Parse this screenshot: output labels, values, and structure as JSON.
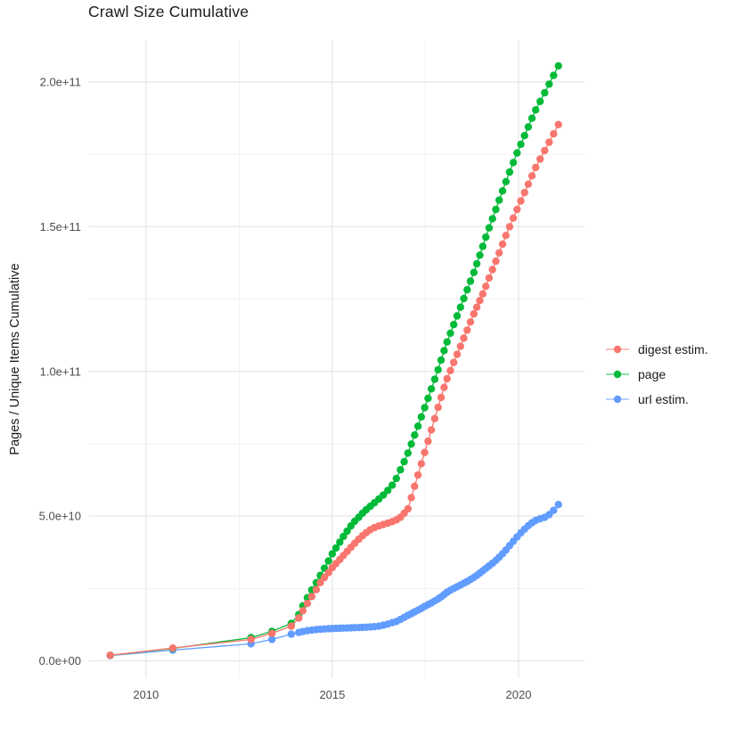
{
  "chart_data": {
    "type": "scatter",
    "title": "Crawl Size Cumulative",
    "ylabel": "Pages / Unique Items Cumulative",
    "xlabel": "",
    "grid": "on",
    "legend_position": "right",
    "value_unit": "1e9 (values below are billions of pages / items)",
    "xlim": [
      2008.45,
      2021.77
    ],
    "ylim_e9": [
      -6,
      214.5
    ],
    "x_ticks": [
      {
        "year": 2010,
        "label": "2010"
      },
      {
        "year": 2015,
        "label": "2015"
      },
      {
        "year": 2020,
        "label": "2020"
      }
    ],
    "y_ticks": [
      {
        "value_e9": 0,
        "label": "0.0e+00"
      },
      {
        "value_e9": 50,
        "label": "5.0e+10"
      },
      {
        "value_e9": 100,
        "label": "1.0e+11"
      },
      {
        "value_e9": 150,
        "label": "1.5e+11"
      },
      {
        "value_e9": 200,
        "label": "2.0e+11"
      }
    ],
    "x_minor_ticks": [
      2012.5,
      2017.5
    ],
    "y_minor_ticks_e9": [
      25,
      75,
      125,
      175
    ],
    "colors": {
      "digest": "#F8766D",
      "page": "#00BA38",
      "url": "#619CFF",
      "grid_major": "#E7E7E7",
      "grid_minor": "#F1F1F1",
      "tick_text": "#4d4d4d",
      "text": "#1a1a1a"
    },
    "legend_order": [
      "digest estim.",
      "page",
      "url estim."
    ],
    "series": [
      {
        "name": "url estim.",
        "color": "#619CFF",
        "points": [
          [
            2009.04,
            1.8
          ],
          [
            2010.72,
            3.7
          ],
          [
            2012.82,
            5.9
          ],
          [
            2013.38,
            7.4
          ],
          [
            2013.9,
            9.2
          ],
          [
            2014.1,
            9.8
          ],
          [
            2014.21,
            10.1
          ],
          [
            2014.33,
            10.4
          ],
          [
            2014.45,
            10.6
          ],
          [
            2014.57,
            10.8
          ],
          [
            2014.68,
            10.9
          ],
          [
            2014.79,
            11.0
          ],
          [
            2014.9,
            11.1
          ],
          [
            2015.0,
            11.15
          ],
          [
            2015.1,
            11.2
          ],
          [
            2015.2,
            11.25
          ],
          [
            2015.3,
            11.3
          ],
          [
            2015.4,
            11.35
          ],
          [
            2015.5,
            11.4
          ],
          [
            2015.6,
            11.45
          ],
          [
            2015.71,
            11.5
          ],
          [
            2015.81,
            11.55
          ],
          [
            2015.91,
            11.6
          ],
          [
            2016.02,
            11.7
          ],
          [
            2016.13,
            11.8
          ],
          [
            2016.25,
            12.0
          ],
          [
            2016.37,
            12.3
          ],
          [
            2016.49,
            12.7
          ],
          [
            2016.61,
            13.2
          ],
          [
            2016.72,
            13.6
          ],
          [
            2016.83,
            14.3
          ],
          [
            2016.93,
            15.0
          ],
          [
            2017.03,
            15.7
          ],
          [
            2017.12,
            16.3
          ],
          [
            2017.21,
            16.9
          ],
          [
            2017.3,
            17.5
          ],
          [
            2017.39,
            18.1
          ],
          [
            2017.48,
            18.8
          ],
          [
            2017.57,
            19.4
          ],
          [
            2017.66,
            20.0
          ],
          [
            2017.75,
            20.7
          ],
          [
            2017.84,
            21.4
          ],
          [
            2017.92,
            22.1
          ],
          [
            2018.0,
            22.9
          ],
          [
            2018.08,
            23.7
          ],
          [
            2018.17,
            24.4
          ],
          [
            2018.26,
            25.0
          ],
          [
            2018.35,
            25.6
          ],
          [
            2018.44,
            26.2
          ],
          [
            2018.53,
            26.8
          ],
          [
            2018.62,
            27.4
          ],
          [
            2018.71,
            28.1
          ],
          [
            2018.8,
            28.8
          ],
          [
            2018.88,
            29.5
          ],
          [
            2018.96,
            30.3
          ],
          [
            2019.04,
            31.1
          ],
          [
            2019.12,
            31.9
          ],
          [
            2019.21,
            32.8
          ],
          [
            2019.3,
            33.7
          ],
          [
            2019.39,
            34.7
          ],
          [
            2019.48,
            35.8
          ],
          [
            2019.57,
            37.0
          ],
          [
            2019.66,
            38.3
          ],
          [
            2019.76,
            39.8
          ],
          [
            2019.86,
            41.3
          ],
          [
            2019.96,
            42.8
          ],
          [
            2020.06,
            44.2
          ],
          [
            2020.16,
            45.5
          ],
          [
            2020.26,
            46.7
          ],
          [
            2020.36,
            47.7
          ],
          [
            2020.46,
            48.5
          ],
          [
            2020.58,
            49.1
          ],
          [
            2020.7,
            49.6
          ],
          [
            2020.82,
            50.5
          ],
          [
            2020.94,
            52.0
          ],
          [
            2021.07,
            54.0
          ]
        ]
      },
      {
        "name": "page",
        "color": "#00BA38",
        "points": [
          [
            2009.04,
            1.9
          ],
          [
            2010.72,
            4.3
          ],
          [
            2012.82,
            8.0
          ],
          [
            2013.38,
            10.2
          ],
          [
            2013.9,
            12.9
          ],
          [
            2014.1,
            16.0
          ],
          [
            2014.21,
            19.0
          ],
          [
            2014.33,
            21.8
          ],
          [
            2014.45,
            24.5
          ],
          [
            2014.57,
            27.0
          ],
          [
            2014.68,
            29.5
          ],
          [
            2014.79,
            32.0
          ],
          [
            2014.9,
            34.5
          ],
          [
            2015.0,
            37.0
          ],
          [
            2015.1,
            39.0
          ],
          [
            2015.2,
            41.0
          ],
          [
            2015.3,
            43.0
          ],
          [
            2015.4,
            44.8
          ],
          [
            2015.5,
            46.6
          ],
          [
            2015.6,
            48.2
          ],
          [
            2015.71,
            49.6
          ],
          [
            2015.81,
            51.0
          ],
          [
            2015.91,
            52.2
          ],
          [
            2016.02,
            53.4
          ],
          [
            2016.13,
            54.6
          ],
          [
            2016.25,
            55.9
          ],
          [
            2016.37,
            57.3
          ],
          [
            2016.49,
            58.9
          ],
          [
            2016.61,
            60.7
          ],
          [
            2016.72,
            63.0
          ],
          [
            2016.83,
            66.0
          ],
          [
            2016.93,
            68.8
          ],
          [
            2017.03,
            71.8
          ],
          [
            2017.12,
            74.9
          ],
          [
            2017.21,
            78.0
          ],
          [
            2017.3,
            81.1
          ],
          [
            2017.39,
            84.3
          ],
          [
            2017.48,
            87.5
          ],
          [
            2017.57,
            90.7
          ],
          [
            2017.66,
            94.0
          ],
          [
            2017.75,
            97.3
          ],
          [
            2017.84,
            100.6
          ],
          [
            2017.92,
            103.9
          ],
          [
            2018.0,
            107.2
          ],
          [
            2018.08,
            110.2
          ],
          [
            2018.17,
            113.2
          ],
          [
            2018.26,
            116.2
          ],
          [
            2018.35,
            119.2
          ],
          [
            2018.44,
            122.2
          ],
          [
            2018.53,
            125.2
          ],
          [
            2018.62,
            128.2
          ],
          [
            2018.71,
            131.2
          ],
          [
            2018.8,
            134.2
          ],
          [
            2018.88,
            137.2
          ],
          [
            2018.96,
            140.2
          ],
          [
            2019.04,
            143.2
          ],
          [
            2019.12,
            146.4
          ],
          [
            2019.21,
            149.6
          ],
          [
            2019.3,
            152.8
          ],
          [
            2019.39,
            156.0
          ],
          [
            2019.48,
            159.2
          ],
          [
            2019.57,
            162.4
          ],
          [
            2019.66,
            165.6
          ],
          [
            2019.76,
            168.9
          ],
          [
            2019.86,
            172.2
          ],
          [
            2019.96,
            175.5
          ],
          [
            2020.06,
            178.5
          ],
          [
            2020.16,
            181.5
          ],
          [
            2020.26,
            184.5
          ],
          [
            2020.36,
            187.5
          ],
          [
            2020.46,
            190.4
          ],
          [
            2020.58,
            193.3
          ],
          [
            2020.7,
            196.3
          ],
          [
            2020.82,
            199.3
          ],
          [
            2020.94,
            202.3
          ],
          [
            2021.07,
            205.6
          ]
        ]
      },
      {
        "name": "digest estim.",
        "color": "#F8766D",
        "points": [
          [
            2009.04,
            1.9
          ],
          [
            2010.72,
            4.4
          ],
          [
            2012.82,
            7.4
          ],
          [
            2013.38,
            9.5
          ],
          [
            2013.9,
            12.0
          ],
          [
            2014.1,
            14.8
          ],
          [
            2014.21,
            17.3
          ],
          [
            2014.33,
            19.8
          ],
          [
            2014.45,
            22.2
          ],
          [
            2014.57,
            24.6
          ],
          [
            2014.68,
            27.0
          ],
          [
            2014.79,
            28.8
          ],
          [
            2014.9,
            30.5
          ],
          [
            2015.0,
            32.2
          ],
          [
            2015.1,
            33.6
          ],
          [
            2015.2,
            35.0
          ],
          [
            2015.3,
            36.4
          ],
          [
            2015.4,
            37.8
          ],
          [
            2015.5,
            39.2
          ],
          [
            2015.6,
            40.6
          ],
          [
            2015.71,
            42.0
          ],
          [
            2015.81,
            43.2
          ],
          [
            2015.91,
            44.3
          ],
          [
            2016.02,
            45.3
          ],
          [
            2016.13,
            46.0
          ],
          [
            2016.25,
            46.6
          ],
          [
            2016.37,
            47.1
          ],
          [
            2016.49,
            47.6
          ],
          [
            2016.61,
            48.1
          ],
          [
            2016.72,
            48.7
          ],
          [
            2016.83,
            49.6
          ],
          [
            2016.93,
            51.0
          ],
          [
            2017.03,
            52.5
          ],
          [
            2017.12,
            56.4
          ],
          [
            2017.21,
            60.3
          ],
          [
            2017.3,
            64.2
          ],
          [
            2017.39,
            68.1
          ],
          [
            2017.48,
            72.0
          ],
          [
            2017.57,
            75.9
          ],
          [
            2017.66,
            79.8
          ],
          [
            2017.75,
            83.7
          ],
          [
            2017.84,
            87.6
          ],
          [
            2017.92,
            91.0
          ],
          [
            2018.0,
            94.5
          ],
          [
            2018.08,
            97.5
          ],
          [
            2018.17,
            100.3
          ],
          [
            2018.26,
            103.1
          ],
          [
            2018.35,
            105.9
          ],
          [
            2018.44,
            108.7
          ],
          [
            2018.53,
            111.5
          ],
          [
            2018.62,
            114.3
          ],
          [
            2018.71,
            117.1
          ],
          [
            2018.8,
            119.9
          ],
          [
            2018.88,
            122.2
          ],
          [
            2018.96,
            124.5
          ],
          [
            2019.04,
            126.8
          ],
          [
            2019.12,
            129.4
          ],
          [
            2019.21,
            132.3
          ],
          [
            2019.3,
            135.2
          ],
          [
            2019.39,
            138.1
          ],
          [
            2019.48,
            141.0
          ],
          [
            2019.57,
            144.0
          ],
          [
            2019.66,
            147.0
          ],
          [
            2019.76,
            150.0
          ],
          [
            2019.86,
            153.0
          ],
          [
            2019.96,
            156.0
          ],
          [
            2020.06,
            158.9
          ],
          [
            2020.16,
            161.8
          ],
          [
            2020.26,
            164.7
          ],
          [
            2020.36,
            167.6
          ],
          [
            2020.46,
            170.5
          ],
          [
            2020.58,
            173.4
          ],
          [
            2020.7,
            176.3
          ],
          [
            2020.82,
            179.2
          ],
          [
            2020.94,
            182.1
          ],
          [
            2021.07,
            185.3
          ]
        ]
      }
    ]
  }
}
